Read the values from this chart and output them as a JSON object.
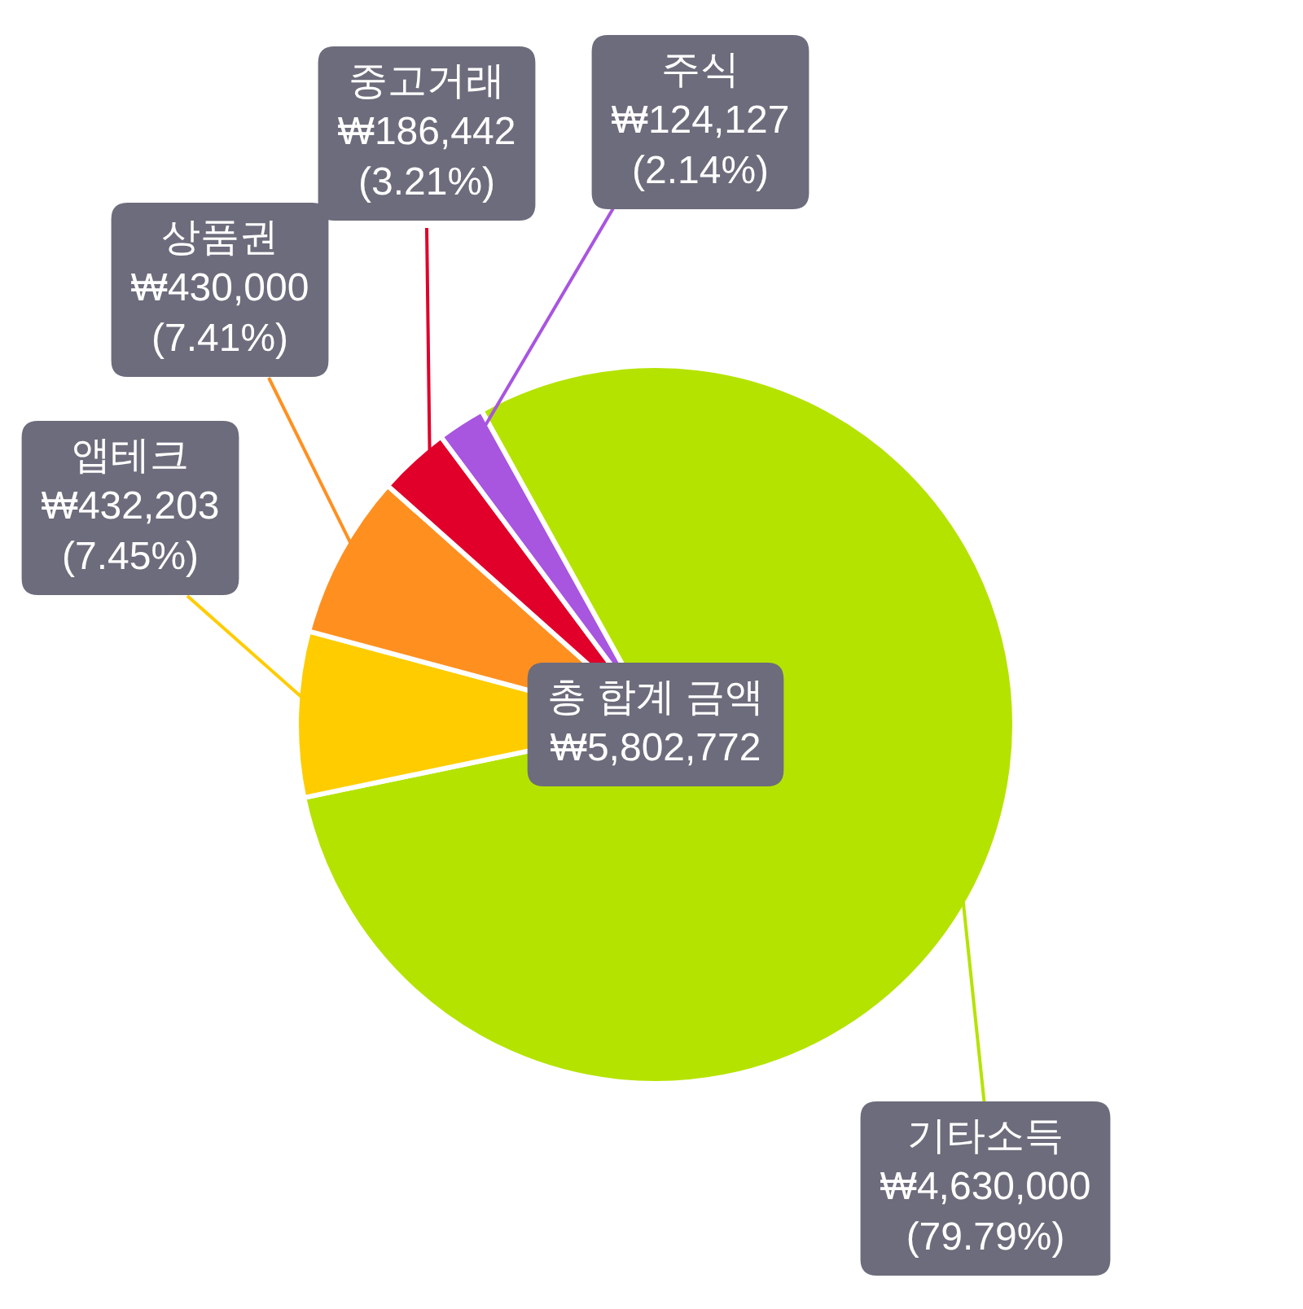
{
  "chart_data": {
    "type": "pie",
    "categories": [
      "기타소득",
      "앱테크",
      "상품권",
      "중고거래",
      "주식"
    ],
    "values": [
      4630000,
      432203,
      430000,
      186442,
      124127
    ],
    "colors": [
      "#b5e300",
      "#ffcc00",
      "#ff9020",
      "#e0002a",
      "#a855e0"
    ],
    "value_labels": [
      "₩4,630,000\n(79.79%)",
      "₩432,203\n(7.45%)",
      "₩430,000\n(7.41%)",
      "₩186,442\n(3.21%)",
      "₩124,127\n(2.14%)"
    ],
    "annotations": [
      "총 합계 금액",
      "₩5,802,772"
    ]
  }
}
